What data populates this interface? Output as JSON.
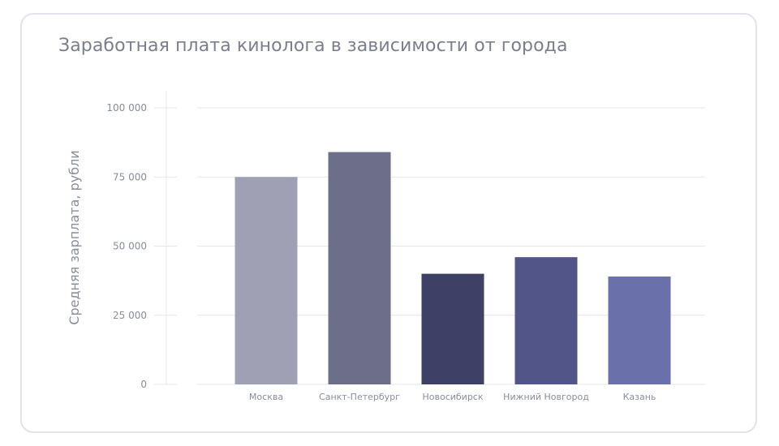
{
  "chart_data": {
    "type": "bar",
    "title": "Заработная плата кинолога в зависимости от города",
    "xlabel": "",
    "ylabel": "Средняя зарплата, рубли",
    "categories": [
      "Москва",
      "Санкт-Петербург",
      "Новосибирск",
      "Нижний Новгород",
      "Казань"
    ],
    "values": [
      75000,
      84000,
      40000,
      46000,
      39000
    ],
    "bar_colors": [
      "#9fa0b4",
      "#6d6f8a",
      "#3e4066",
      "#515587",
      "#6970aa"
    ],
    "ylim": [
      0,
      100000
    ],
    "yticks": [
      0,
      25000,
      50000,
      75000,
      100000
    ],
    "ytick_labels": [
      "0",
      "25 000",
      "50 000",
      "75 000",
      "100 000"
    ],
    "grid": true,
    "legend": "none"
  },
  "colors": {
    "title": "#7b7f8c",
    "axis_text": "#8a8e9b",
    "gridline": "#e6e7ec",
    "card_border": "#e3e4ea"
  }
}
